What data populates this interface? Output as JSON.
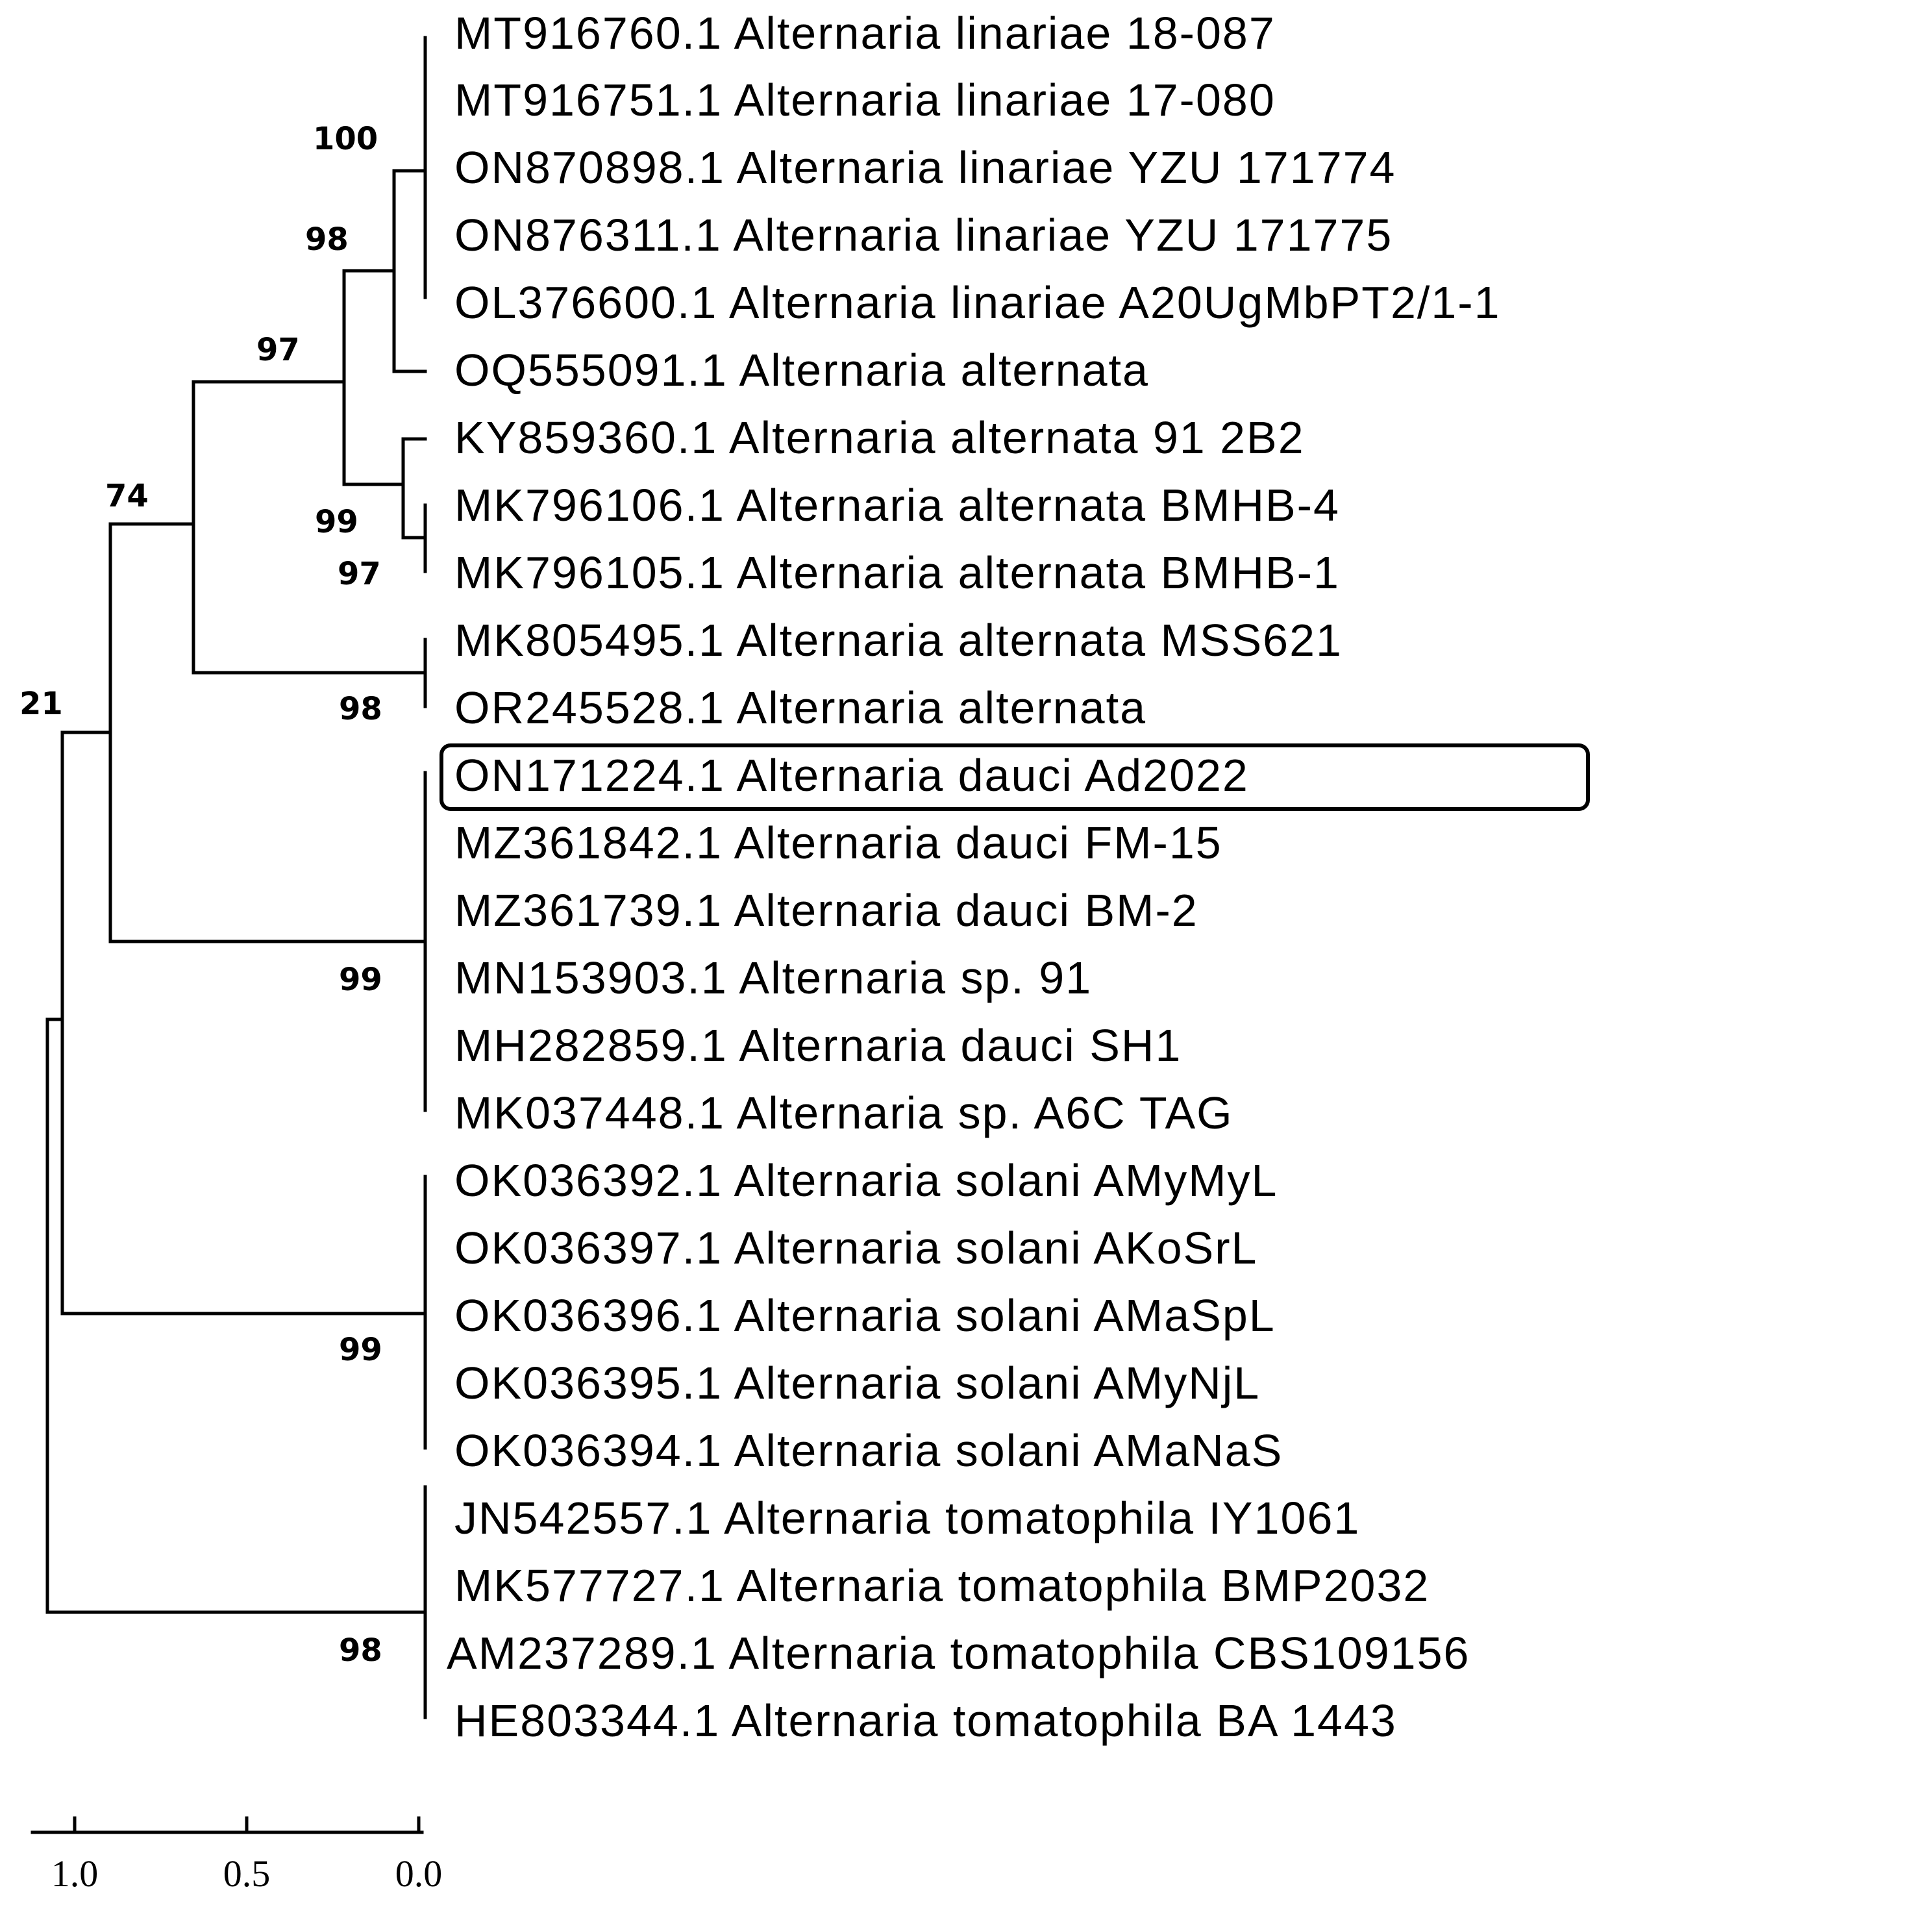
{
  "taxa": [
    "MT916760.1 Alternaria linariae 18-087",
    "MT916751.1 Alternaria linariae 17-080",
    "ON870898.1 Alternaria linariae YZU 171774",
    "ON876311.1 Alternaria linariae YZU 171775",
    "OL376600.1 Alternaria linariae A20UgMbPT2/1-1",
    "OQ555091.1 Alternaria alternata",
    "KY859360.1 Alternaria alternata 91 2B2",
    "MK796106.1 Alternaria alternata BMHB-4",
    "MK796105.1 Alternaria alternata BMHB-1",
    "MK805495.1 Alternaria alternata MSS621",
    "OR245528.1 Alternaria alternata",
    "ON171224.1 Alternaria dauci Ad2022",
    "MZ361842.1 Alternaria dauci FM-15",
    "MZ361739.1 Alternaria dauci BM-2",
    "MN153903.1 Alternaria sp. 91",
    "MH282859.1 Alternaria dauci SH1",
    "MK037448.1 Alternaria sp. A6C TAG",
    "OK036392.1 Alternaria solani AMyMyL",
    "OK036397.1 Alternaria solani AKoSrL",
    "OK036396.1 Alternaria solani AMaSpL",
    "OK036395.1 Alternaria solani AMyNjL",
    "OK036394.1 Alternaria solani AMaNaS",
    "JN542557.1 Alternaria tomatophila IY1061",
    "MK577727.1 Alternaria tomatophila BMP2032",
    "AM237289.1 Alternaria tomatophila CBS109156",
    "HE803344.1 Alternaria tomatophila BA 1443"
  ],
  "highlighted_taxon": "ON171224.1 Alternaria dauci Ad2022",
  "support_values": [
    "100",
    "98",
    "97",
    "99",
    "97",
    "74",
    "98",
    "21",
    "99",
    "99",
    "98"
  ],
  "scale_bar": {
    "ticks": [
      "1.0",
      "0.5",
      "0.0"
    ]
  }
}
